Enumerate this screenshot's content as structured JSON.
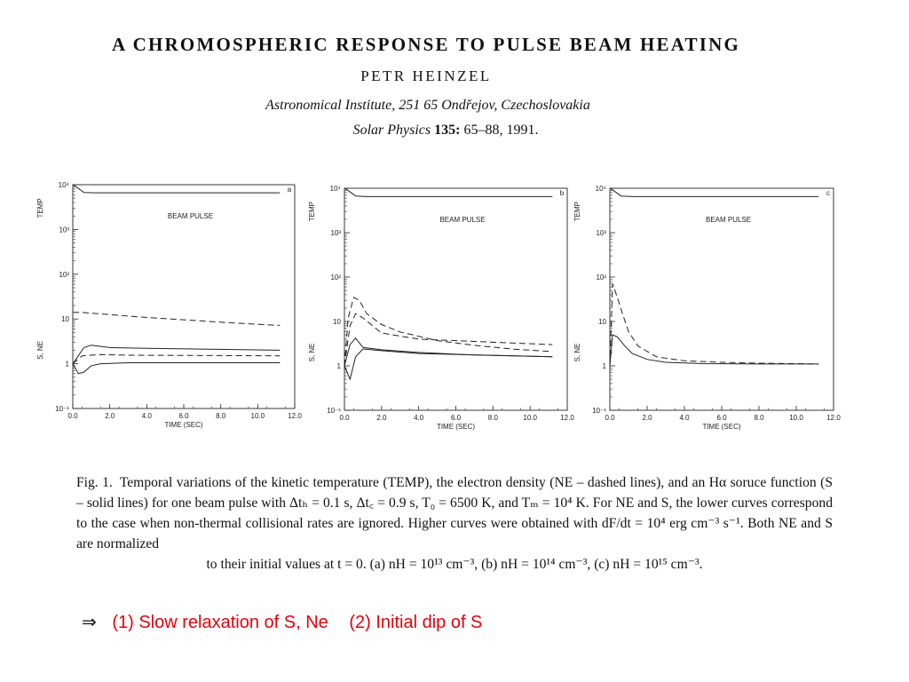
{
  "paper": {
    "title": "A CHROMOSPHERIC RESPONSE TO PULSE BEAM HEATING",
    "author": "PETR HEINZEL",
    "affiliation": "Astronomical Institute, 251 65 Ondřejov, Czechoslovakia",
    "journal": "Solar Physics",
    "volume": "135:",
    "pages_year": "65–88, 1991."
  },
  "figure": {
    "panels": [
      {
        "label": "a",
        "annotation": "BEAM PULSE",
        "temp_axis_label": "TEMP",
        "sne_axis_label": "S, NE"
      },
      {
        "label": "b",
        "annotation": "BEAM PULSE",
        "temp_axis_label": "TEMP",
        "sne_axis_label": "S, NE"
      },
      {
        "label": "c",
        "annotation": "BEAM PULSE",
        "temp_axis_label": "TEMP",
        "sne_axis_label": "S, NE"
      }
    ]
  },
  "chart_data": [
    {
      "type": "line",
      "panel": "a",
      "xlabel": "TIME (SEC)",
      "xlim": [
        0,
        12
      ],
      "x_ticks": [
        "0.0",
        "2.0",
        "4.0",
        "6.0",
        "8.0",
        "10.0",
        "12.0"
      ],
      "y_scale": "log",
      "ylim": [
        0.1,
        10000
      ],
      "y_ticks": [
        "10⁻¹",
        "1",
        "10",
        "10²",
        "10³",
        "10⁴"
      ],
      "series": [
        {
          "style": "solid",
          "x": [
            0,
            0.15,
            0.6,
            1.2,
            11.2
          ],
          "y": [
            10000,
            9200,
            6700,
            6600,
            6600
          ]
        },
        {
          "style": "dashed",
          "x": [
            0,
            0.5,
            2,
            4,
            6,
            8,
            10,
            11.2
          ],
          "y": [
            14,
            14,
            12.5,
            10.8,
            9.6,
            8.5,
            7.6,
            7.2
          ]
        },
        {
          "style": "solid",
          "x": [
            0,
            0.25,
            0.6,
            1.0,
            2,
            4,
            11.2
          ],
          "y": [
            1,
            1.4,
            2.3,
            2.6,
            2.3,
            2.2,
            2.0
          ]
        },
        {
          "style": "dashed",
          "x": [
            0,
            0.5,
            1.5,
            3,
            11.2
          ],
          "y": [
            1,
            1.5,
            1.6,
            1.55,
            1.5
          ]
        },
        {
          "style": "solid",
          "x": [
            0,
            0.3,
            0.6,
            1.0,
            1.5,
            3,
            11.2
          ],
          "y": [
            1,
            0.6,
            0.65,
            0.9,
            1.0,
            1.05,
            1.05
          ]
        }
      ]
    },
    {
      "type": "line",
      "panel": "b",
      "xlabel": "TIME (SEC)",
      "xlim": [
        0,
        12
      ],
      "x_ticks": [
        "0.0",
        "2.0",
        "4.0",
        "6.0",
        "8.0",
        "10.0",
        "12.0"
      ],
      "y_scale": "log",
      "ylim": [
        0.1,
        10000
      ],
      "y_ticks": [
        "10⁻¹",
        "1",
        "10",
        "10²",
        "10³",
        "10⁴"
      ],
      "series": [
        {
          "style": "solid",
          "x": [
            0,
            0.15,
            0.6,
            1.2,
            11.2
          ],
          "y": [
            10000,
            9200,
            6700,
            6500,
            6500
          ]
        },
        {
          "style": "dashed",
          "x": [
            0,
            0.2,
            0.5,
            0.8,
            1.2,
            2,
            3,
            5,
            7,
            9,
            11.2
          ],
          "y": [
            1,
            12,
            35,
            30,
            15,
            8.5,
            5.8,
            3.7,
            2.9,
            2.4,
            2.1
          ]
        },
        {
          "style": "dashed",
          "x": [
            0,
            0.3,
            0.6,
            1.0,
            2,
            4,
            11.2
          ],
          "y": [
            1,
            8,
            15,
            12,
            5.5,
            4,
            3
          ]
        },
        {
          "style": "solid",
          "x": [
            0,
            0.3,
            0.6,
            1.0,
            2,
            4,
            7,
            11.2
          ],
          "y": [
            1,
            3,
            4.2,
            2.6,
            2.3,
            2.0,
            1.75,
            1.6
          ]
        },
        {
          "style": "solid",
          "x": [
            0,
            0.3,
            0.6,
            1.0,
            2,
            4,
            11.2
          ],
          "y": [
            1,
            0.5,
            1.6,
            2.4,
            2.2,
            1.9,
            1.6
          ]
        }
      ]
    },
    {
      "type": "line",
      "panel": "c",
      "xlabel": "TIME (SEC)",
      "xlim": [
        0,
        12
      ],
      "x_ticks": [
        "0.0",
        "2.0",
        "4.0",
        "6.0",
        "8.0",
        "10.0",
        "12.0"
      ],
      "y_scale": "log",
      "ylim": [
        0.1,
        10000
      ],
      "y_ticks": [
        "10⁻¹",
        "1",
        "10",
        "10²",
        "10³",
        "10⁴"
      ],
      "series": [
        {
          "style": "solid",
          "x": [
            0,
            0.15,
            0.6,
            1.2,
            11.2
          ],
          "y": [
            10000,
            9200,
            6700,
            6500,
            6500
          ]
        },
        {
          "style": "dashed",
          "x": [
            0,
            0.15,
            0.4,
            0.7,
            1.0,
            1.5,
            2.5,
            4,
            6,
            8,
            11.2
          ],
          "y": [
            1,
            70,
            35,
            14,
            6,
            2.8,
            1.6,
            1.3,
            1.2,
            1.15,
            1.1
          ]
        },
        {
          "style": "solid",
          "x": [
            0,
            0.15,
            0.4,
            0.8,
            1.2,
            2,
            3,
            5,
            8,
            11.2
          ],
          "y": [
            1,
            5,
            4.5,
            2.8,
            1.9,
            1.4,
            1.2,
            1.12,
            1.1,
            1.1
          ]
        }
      ]
    }
  ],
  "caption": {
    "label": "Fig. 1.",
    "body": "Temporal variations of the kinetic temperature (TEMP), the electron density (NE – dashed lines), and an Hα soruce function (S – solid lines) for one beam pulse with Δtₕ = 0.1 s, Δt꜀ = 0.9 s, T₀ = 6500 K, and Tₘ = 10⁴ K. For NE and S, the lower curves correspond to the case when non-thermal collisional rates are ignored. Higher curves were obtained with dF/dt = 10⁴ erg cm⁻³ s⁻¹. Both NE and S are normalized",
    "last_line": "to their initial values at t = 0. (a) nH = 10¹³ cm⁻³, (b) nH = 10¹⁴ cm⁻³, (c) nH = 10¹⁵ cm⁻³."
  },
  "conclusion": {
    "arrow": "⇒",
    "item1": "(1) Slow relaxation of S, Ne",
    "item2": "(2) Initial dip of S"
  }
}
